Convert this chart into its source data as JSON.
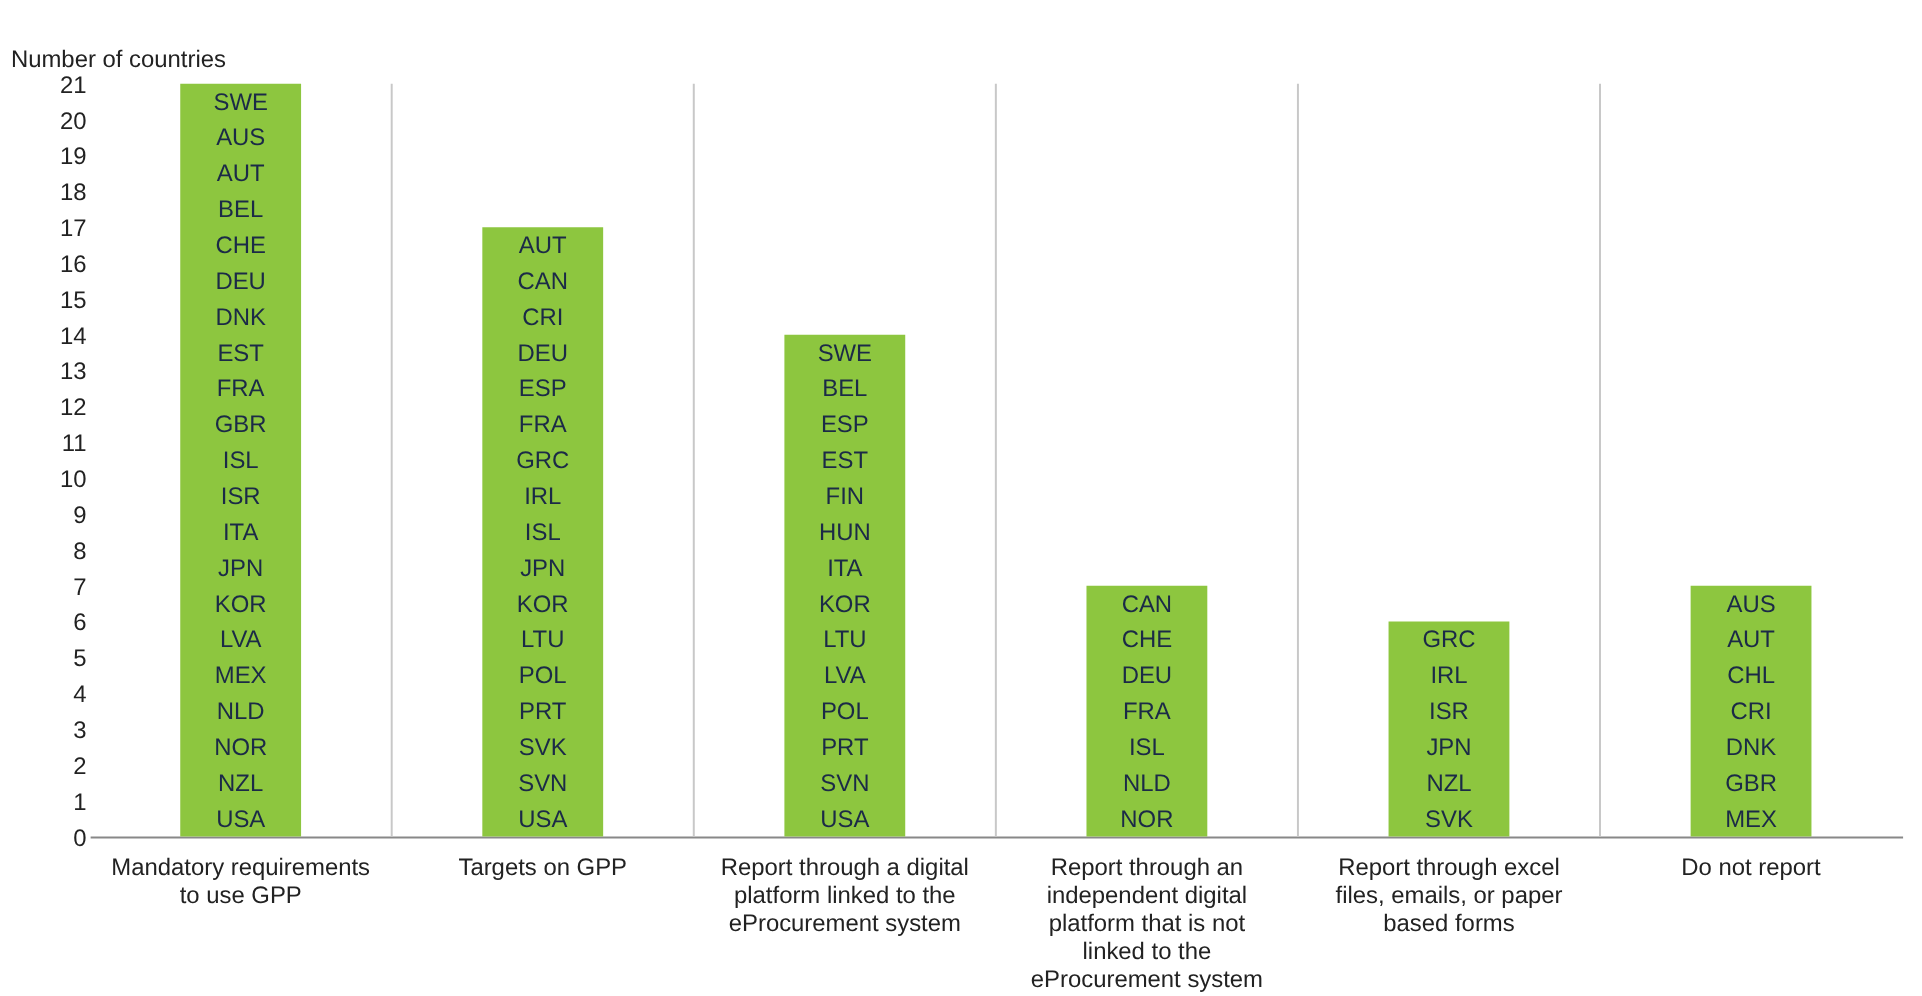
{
  "chart_data": {
    "type": "bar",
    "ylabel": "Number of countries",
    "categories": [
      "Mandatory requirements to use GPP",
      "Targets on GPP",
      "Report through a digital platform linked to the eProcurement system",
      "Report through an independent digital platform that is not linked to the eProcurement system",
      "Report through excel files, emails, or paper based forms",
      "Do not report"
    ],
    "values": [
      21,
      17,
      14,
      7,
      6,
      7
    ],
    "color": "#8dc63f",
    "ylim": [
      0,
      21
    ],
    "yticks": [
      0,
      1,
      2,
      3,
      4,
      5,
      6,
      7,
      8,
      9,
      10,
      11,
      12,
      13,
      14,
      15,
      16,
      17,
      18,
      19,
      20,
      21
    ],
    "grid": "x",
    "annotations": [
      "SWE",
      "AUS",
      "AUT",
      "BEL",
      "CHE",
      "DEU",
      "DNK",
      "EST",
      "FRA",
      "GBR",
      "ISL",
      "ISR",
      "ITA",
      "JPN",
      "KOR",
      "LVA",
      "MEX",
      "NLD",
      "NOR",
      "NZL",
      "USA",
      "AUT",
      "CAN",
      "CRI",
      "DEU",
      "ESP",
      "FRA",
      "GRC",
      "IRL",
      "ISL",
      "JPN",
      "KOR",
      "LTU",
      "POL",
      "PRT",
      "SVK",
      "SVN",
      "USA",
      "SWE",
      "BEL",
      "ESP",
      "EST",
      "FIN",
      "HUN",
      "ITA",
      "KOR",
      "LTU",
      "LVA",
      "POL",
      "PRT",
      "SVN",
      "USA",
      "CAN",
      "CHE",
      "DEU",
      "FRA",
      "ISL",
      "NLD",
      "NOR",
      "GRC",
      "IRL",
      "ISR",
      "JPN",
      "NZL",
      "SVK",
      "AUS",
      "AUT",
      "CHL",
      "CRI",
      "DNK",
      "GBR",
      "MEX"
    ]
  }
}
